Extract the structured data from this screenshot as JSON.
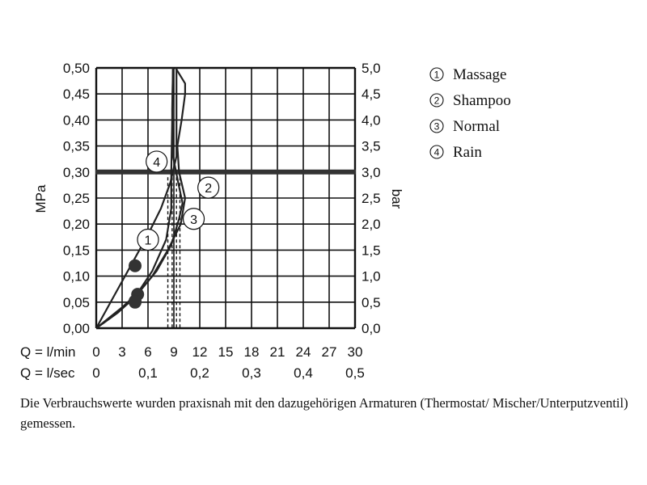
{
  "chart_data": {
    "type": "line",
    "ylabel_left": "MPa",
    "ylabel_right": "bar",
    "ylim": [
      0,
      0.5
    ],
    "xlim": [
      0,
      30
    ],
    "y_ticks_left": [
      "0,00",
      "0,05",
      "0,10",
      "0,15",
      "0,20",
      "0,25",
      "0,30",
      "0,35",
      "0,40",
      "0,45",
      "0,50"
    ],
    "y_ticks_right": [
      "0,0",
      "0,5",
      "1,0",
      "1,5",
      "2,0",
      "2,5",
      "3,0",
      "3,5",
      "4,0",
      "4,5",
      "5,0"
    ],
    "x_row_lmin": {
      "label": "Q = l/min",
      "ticks": [
        "0",
        "3",
        "6",
        "9",
        "12",
        "15",
        "18",
        "21",
        "24",
        "27",
        "30"
      ]
    },
    "x_row_lsec": {
      "label": "Q = l/sec",
      "ticks": [
        "0",
        "0,1",
        "0,2",
        "0,3",
        "0,4",
        "0,5"
      ]
    },
    "grid": true,
    "reference_line": {
      "y": 0.3
    },
    "legend": {
      "placement": "right",
      "items": [
        {
          "symbol": "1",
          "label": "Massage"
        },
        {
          "symbol": "2",
          "label": "Shampoo"
        },
        {
          "symbol": "3",
          "label": "Normal"
        },
        {
          "symbol": "4",
          "label": "Rain"
        }
      ]
    },
    "series": [
      {
        "marker": "1",
        "x": [
          0,
          2,
          4,
          6,
          7.5,
          8.6,
          9.3,
          9.3
        ],
        "y": [
          0,
          0.06,
          0.12,
          0.18,
          0.23,
          0.28,
          0.33,
          0.5
        ]
      },
      {
        "marker": "2",
        "x": [
          0,
          2.5,
          4.5,
          6.5,
          8.3,
          9.8,
          10.3,
          9.6,
          9.4,
          9.9,
          10.3,
          10.3,
          9.2
        ],
        "y": [
          0,
          0.03,
          0.06,
          0.1,
          0.15,
          0.2,
          0.25,
          0.3,
          0.35,
          0.4,
          0.45,
          0.47,
          0.5
        ]
      },
      {
        "marker": "3",
        "x": [
          0,
          3,
          5,
          7,
          8.7,
          9.6,
          10,
          9.5,
          8.9,
          8.8,
          8.9
        ],
        "y": [
          0,
          0.04,
          0.07,
          0.11,
          0.16,
          0.21,
          0.24,
          0.28,
          0.33,
          0.42,
          0.5
        ]
      },
      {
        "marker": "4",
        "x": [
          0,
          2.5,
          4.5,
          6.5,
          8.1,
          8.7,
          8.7,
          8.8,
          8.9
        ],
        "y": [
          0,
          0.03,
          0.06,
          0.11,
          0.17,
          0.23,
          0.3,
          0.4,
          0.5
        ]
      }
    ],
    "operating_points": [
      {
        "x": 4.5,
        "y": 0.12
      },
      {
        "x": 4.8,
        "y": 0.065
      },
      {
        "x": 4.5,
        "y": 0.052
      },
      {
        "x": 4.5,
        "y": 0.05
      }
    ],
    "dashed_verticals_x": [
      8.3,
      8.8,
      9.3,
      9.7
    ],
    "curve_labels": [
      {
        "symbol": "1",
        "x": 6.0,
        "y": 0.17
      },
      {
        "symbol": "2",
        "x": 13.0,
        "y": 0.27
      },
      {
        "symbol": "3",
        "x": 11.3,
        "y": 0.21
      },
      {
        "symbol": "4",
        "x": 7.0,
        "y": 0.32
      }
    ]
  },
  "caption": "Die Verbrauchswerte wurden praxisnah mit den dazugehörigen Armaturen (Thermostat/ Mischer/Unterputzventil) gemessen."
}
